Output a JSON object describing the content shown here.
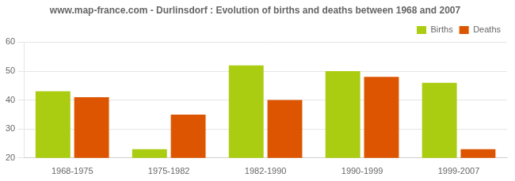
{
  "chart_data": {
    "type": "bar",
    "title": "www.map-france.com - Durlinsdorf : Evolution of births and deaths between 1968 and 2007",
    "categories": [
      "1968-1975",
      "1975-1982",
      "1982-1990",
      "1990-1999",
      "1999-2007"
    ],
    "series": [
      {
        "name": "Births",
        "color": "#aacc11",
        "values": [
          43,
          23,
          52,
          50,
          46
        ]
      },
      {
        "name": "Deaths",
        "color": "#dd5500",
        "values": [
          41,
          35,
          40,
          48,
          23
        ]
      }
    ],
    "ylim": [
      20,
      60
    ],
    "yticks": [
      20,
      30,
      40,
      50,
      60
    ],
    "grid": true,
    "legend": "upper right"
  }
}
